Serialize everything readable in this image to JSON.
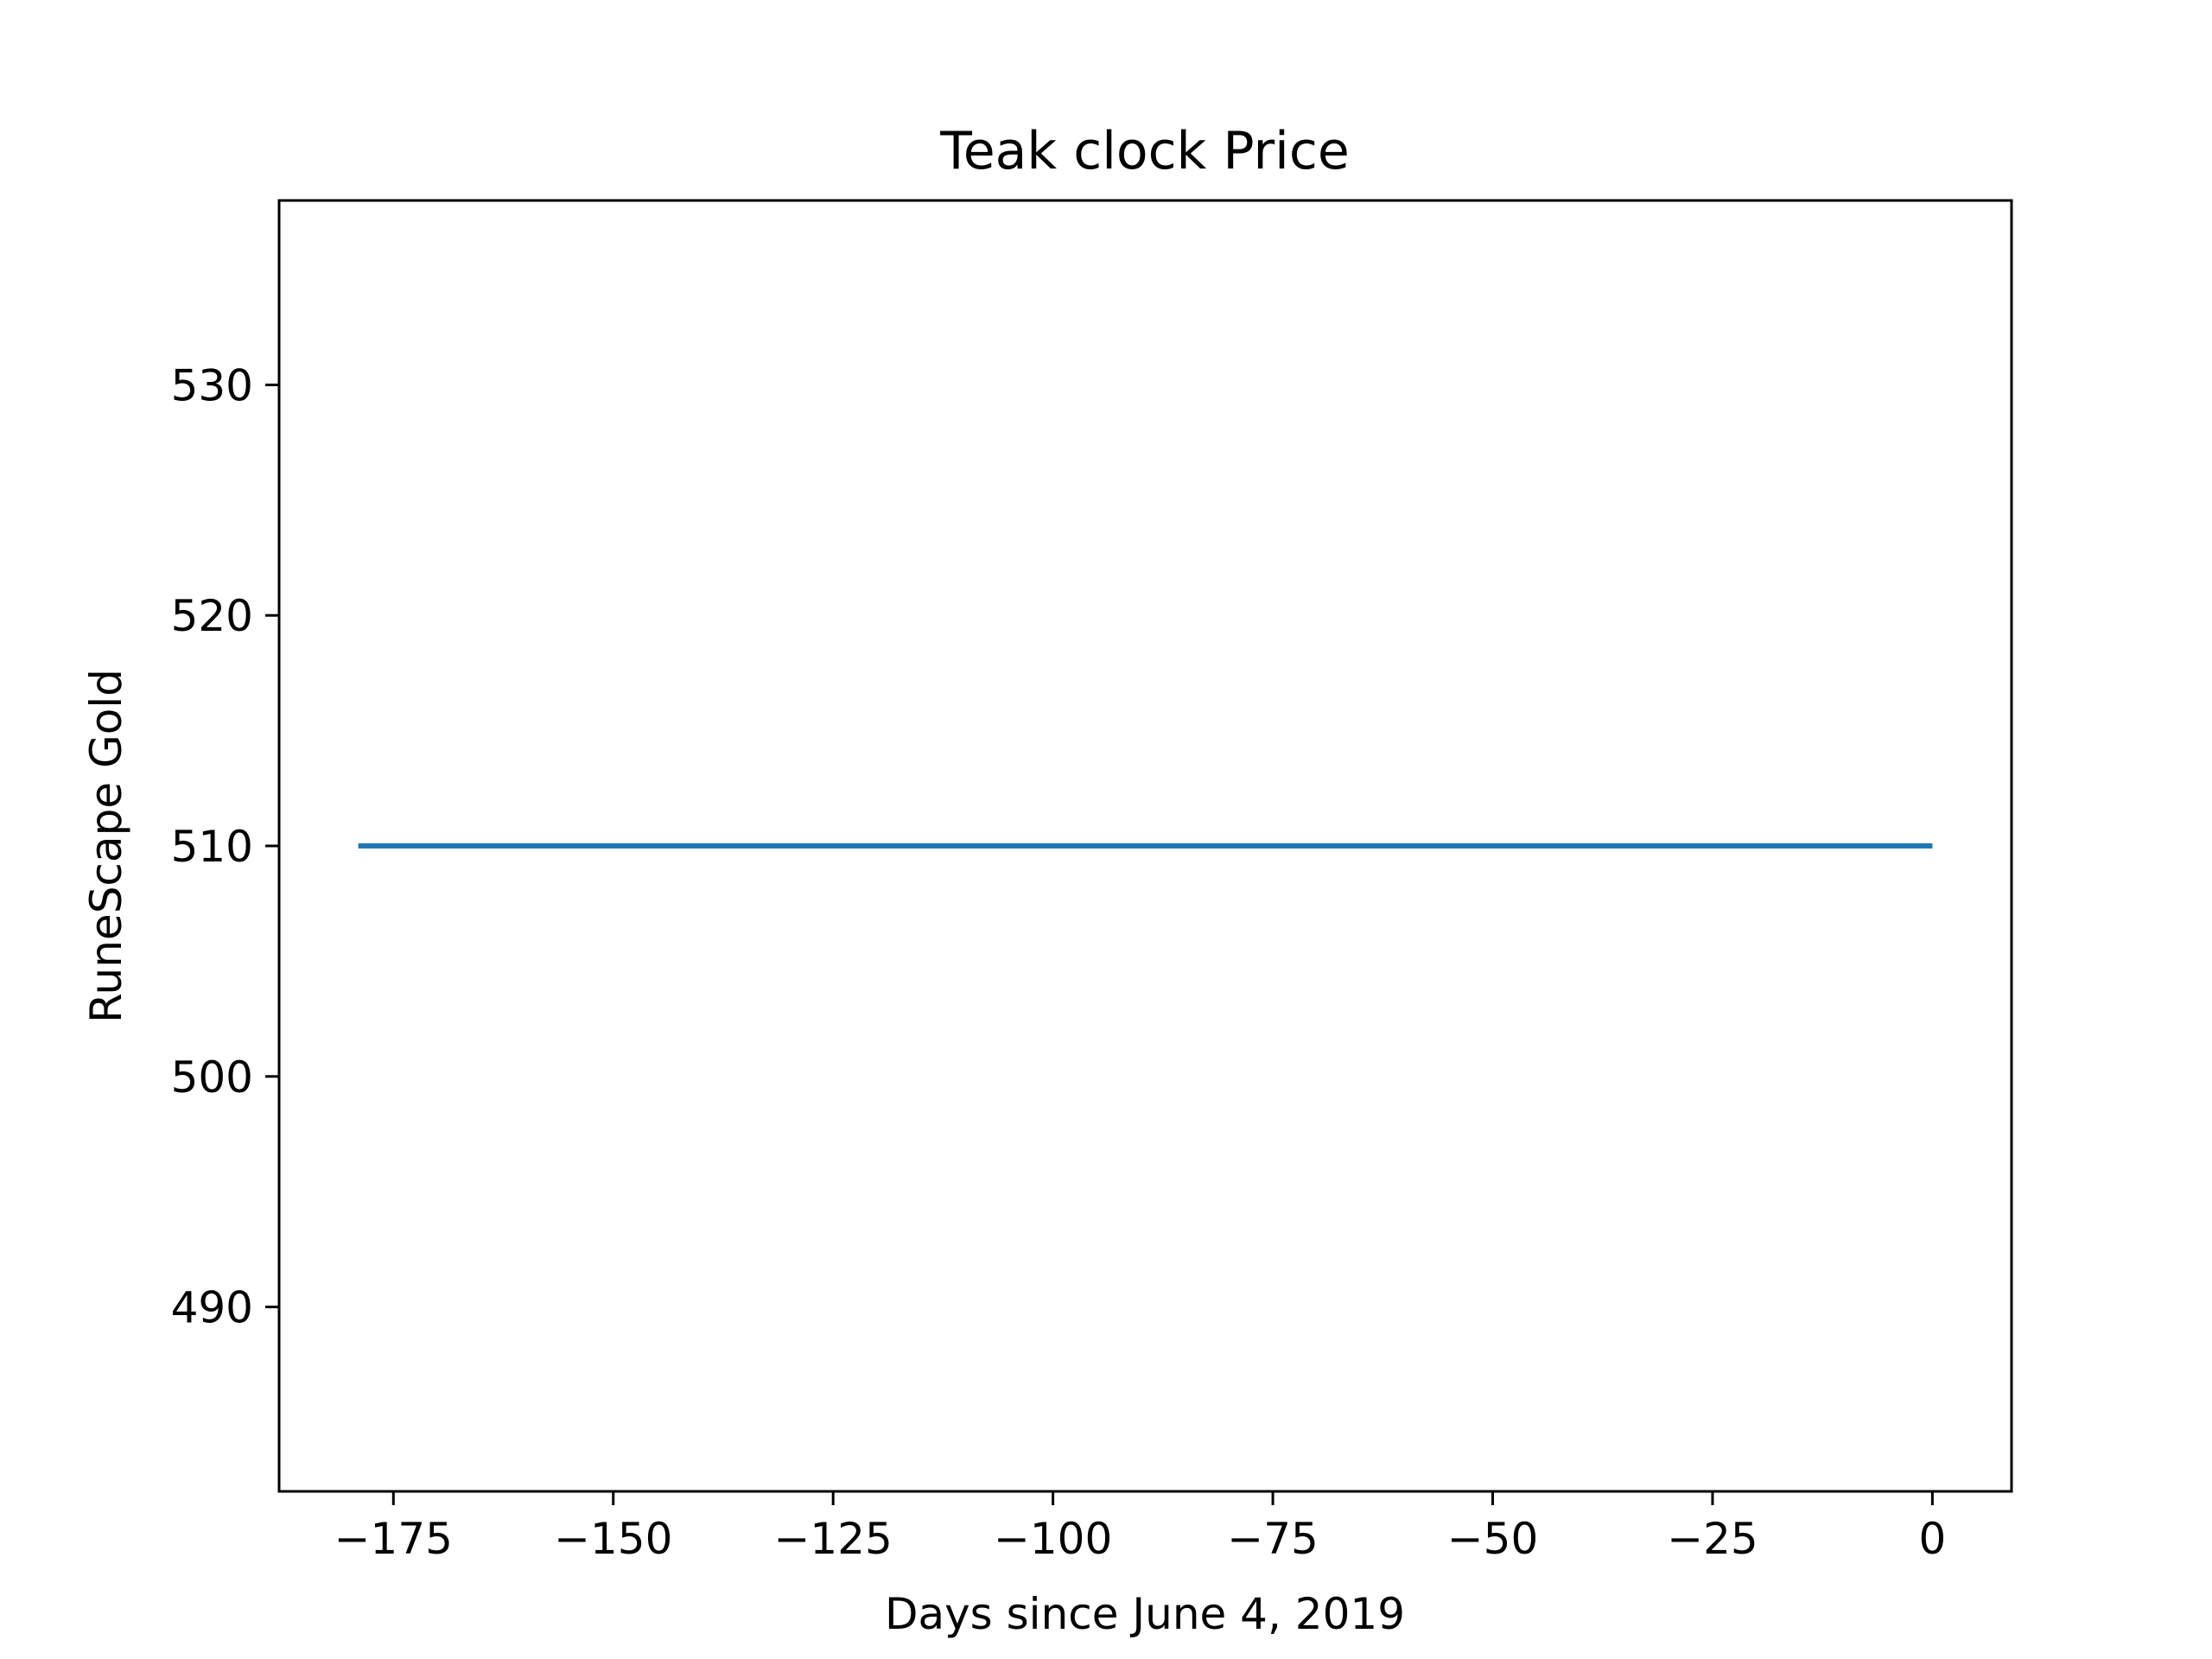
{
  "chart_data": {
    "type": "line",
    "title": "Teak clock Price",
    "xlabel": "Days since June 4, 2019",
    "ylabel": "RuneScape Gold",
    "xlim": [
      -188,
      9
    ],
    "ylim": [
      482,
      538
    ],
    "xticks": [
      -175,
      -150,
      -125,
      -100,
      -75,
      -50,
      -25,
      0
    ],
    "xtick_labels": [
      "−175",
      "−150",
      "−125",
      "−100",
      "−75",
      "−50",
      "−25",
      "0"
    ],
    "yticks": [
      490,
      500,
      510,
      520,
      530
    ],
    "ytick_labels": [
      "490",
      "500",
      "510",
      "520",
      "530"
    ],
    "grid": false,
    "series": [
      {
        "color": "#1f77b4",
        "x": [
          -179,
          -150,
          -125,
          -100,
          -75,
          -50,
          -25,
          0
        ],
        "y": [
          510,
          510,
          510,
          510,
          510,
          510,
          510,
          510
        ]
      }
    ]
  }
}
